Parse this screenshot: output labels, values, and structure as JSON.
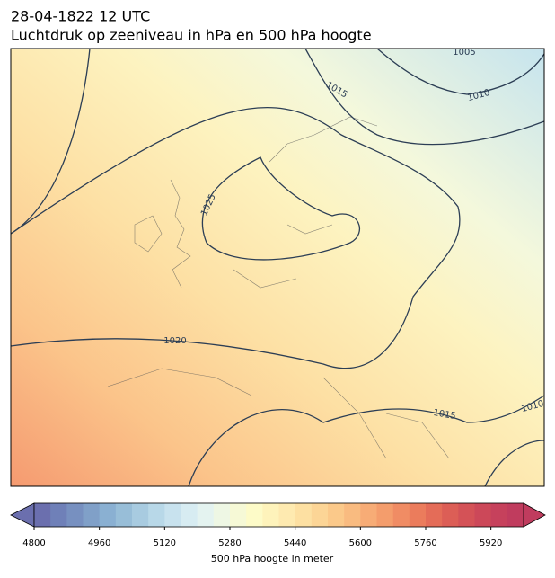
{
  "header": {
    "title": "28-04-1822 12 UTC",
    "subtitle": "Luchtdruk op zeeniveau in hPa en 500 hPa hoogte"
  },
  "map": {
    "isobar_labels": [
      1005,
      1010,
      1015,
      1025,
      1020,
      1015,
      1010
    ]
  },
  "colorbar": {
    "label": "500 hPa hoogte in meter",
    "lim": [
      4800,
      6000
    ],
    "ticks": [
      4800,
      4960,
      5120,
      5280,
      5440,
      5600,
      5760,
      5920
    ],
    "colors": [
      "#6b6fae",
      "#6f80b8",
      "#7790c0",
      "#80a0c8",
      "#8ab0d2",
      "#98bed8",
      "#a8cbe0",
      "#b8d8e8",
      "#c8e2ee",
      "#d7ecf2",
      "#e4f3f0",
      "#eef7e4",
      "#f6f9d6",
      "#fdfbc8",
      "#fef3bb",
      "#feeab0",
      "#fde0a2",
      "#fcd596",
      "#fbc98a",
      "#f9bb80",
      "#f7ac76",
      "#f49d6c",
      "#f08c64",
      "#eb7c5c",
      "#e46c58",
      "#dc5e56",
      "#d45257",
      "#cc4859",
      "#c6415c",
      "#c03c5e"
    ]
  }
}
